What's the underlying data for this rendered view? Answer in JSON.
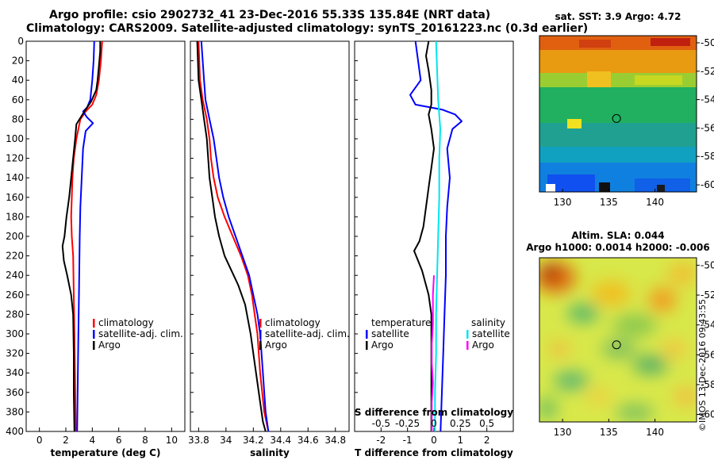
{
  "header": {
    "line1": "Argo profile: csio 2902732_41 23-Dec-2016 55.33S 135.84E (NRT data)",
    "line2": "Climatology: CARS2009. Satellite-adjusted climatology: synTS_20161223.nc (0.3d earlier)"
  },
  "colors": {
    "climatology": "#ff0000",
    "satellite_adj": "#0000ff",
    "argo": "#000000",
    "salinity_satellite": "#00e5ee",
    "salinity_argo": "#ff00ff"
  },
  "chart_data": [
    {
      "type": "line",
      "id": "temperature",
      "xlabel": "temperature (deg C)",
      "ylabel": "",
      "xlim": [
        -1,
        11
      ],
      "ylim": [
        400,
        0
      ],
      "xticks": [
        "0",
        "2",
        "4",
        "6",
        "8",
        "10"
      ],
      "yticks": [
        "0",
        "20",
        "40",
        "60",
        "80",
        "100",
        "120",
        "140",
        "160",
        "180",
        "200",
        "220",
        "240",
        "260",
        "280",
        "300",
        "320",
        "340",
        "360",
        "380",
        "400"
      ],
      "legend": [
        "climatology",
        "satellite-adj. clim.",
        "Argo"
      ],
      "series": [
        {
          "name": "climatology",
          "points": [
            [
              4.75,
              0
            ],
            [
              4.65,
              20
            ],
            [
              4.5,
              40
            ],
            [
              4.3,
              55
            ],
            [
              4,
              65
            ],
            [
              3.5,
              72
            ],
            [
              3.1,
              80
            ],
            [
              2.8,
              100
            ],
            [
              2.6,
              120
            ],
            [
              2.5,
              140
            ],
            [
              2.45,
              160
            ],
            [
              2.4,
              180
            ],
            [
              2.45,
              200
            ],
            [
              2.55,
              220
            ],
            [
              2.6,
              260
            ],
            [
              2.65,
              300
            ],
            [
              2.7,
              350
            ],
            [
              2.75,
              400
            ]
          ]
        },
        {
          "name": "satellite-adj. clim.",
          "points": [
            [
              4.15,
              0
            ],
            [
              4.1,
              20
            ],
            [
              4.0,
              40
            ],
            [
              3.85,
              60
            ],
            [
              3.6,
              68
            ],
            [
              3.3,
              72
            ],
            [
              3.6,
              78
            ],
            [
              4.05,
              84
            ],
            [
              3.5,
              92
            ],
            [
              3.3,
              110
            ],
            [
              3.2,
              140
            ],
            [
              3.1,
              170
            ],
            [
              3.05,
              200
            ],
            [
              3.0,
              250
            ],
            [
              2.95,
              300
            ],
            [
              2.9,
              350
            ],
            [
              2.85,
              400
            ]
          ]
        },
        {
          "name": "Argo",
          "points": [
            [
              4.6,
              0
            ],
            [
              4.6,
              10
            ],
            [
              4.5,
              25
            ],
            [
              4.4,
              40
            ],
            [
              4.3,
              50
            ],
            [
              3.9,
              62
            ],
            [
              3.4,
              72
            ],
            [
              2.8,
              85
            ],
            [
              2.7,
              100
            ],
            [
              2.55,
              120
            ],
            [
              2.4,
              140
            ],
            [
              2.25,
              160
            ],
            [
              2.05,
              180
            ],
            [
              1.9,
              200
            ],
            [
              1.75,
              210
            ],
            [
              1.85,
              225
            ],
            [
              2.1,
              240
            ],
            [
              2.4,
              260
            ],
            [
              2.55,
              280
            ],
            [
              2.6,
              320
            ],
            [
              2.6,
              360
            ],
            [
              2.65,
              400
            ]
          ]
        }
      ]
    },
    {
      "type": "line",
      "id": "salinity",
      "xlabel": "salinity",
      "xlim": [
        33.74,
        34.9
      ],
      "ylim": [
        400,
        0
      ],
      "xticks": [
        "33.8",
        "34",
        "34.2",
        "34.4",
        "34.6",
        "34.8"
      ],
      "legend": [
        "climatology",
        "satellite-adj. clim.",
        "Argo"
      ],
      "series": [
        {
          "name": "climatology",
          "points": [
            [
              33.8,
              0
            ],
            [
              33.81,
              40
            ],
            [
              33.83,
              60
            ],
            [
              33.86,
              80
            ],
            [
              33.88,
              100
            ],
            [
              33.89,
              120
            ],
            [
              33.91,
              140
            ],
            [
              33.94,
              160
            ],
            [
              33.99,
              180
            ],
            [
              34.05,
              200
            ],
            [
              34.11,
              220
            ],
            [
              34.16,
              240
            ],
            [
              34.19,
              260
            ],
            [
              34.21,
              280
            ],
            [
              34.23,
              300
            ],
            [
              34.25,
              340
            ],
            [
              34.28,
              380
            ],
            [
              34.31,
              400
            ]
          ]
        },
        {
          "name": "satellite-adj. clim.",
          "points": [
            [
              33.82,
              0
            ],
            [
              33.84,
              40
            ],
            [
              33.85,
              60
            ],
            [
              33.88,
              80
            ],
            [
              33.91,
              100
            ],
            [
              33.93,
              120
            ],
            [
              33.95,
              140
            ],
            [
              33.98,
              160
            ],
            [
              34.02,
              180
            ],
            [
              34.07,
              200
            ],
            [
              34.12,
              220
            ],
            [
              34.17,
              240
            ],
            [
              34.2,
              260
            ],
            [
              34.23,
              280
            ],
            [
              34.25,
              300
            ],
            [
              34.27,
              340
            ],
            [
              34.29,
              380
            ],
            [
              34.31,
              400
            ]
          ]
        },
        {
          "name": "Argo",
          "points": [
            [
              33.79,
              0
            ],
            [
              33.8,
              40
            ],
            [
              33.82,
              60
            ],
            [
              33.84,
              80
            ],
            [
              33.86,
              100
            ],
            [
              33.87,
              120
            ],
            [
              33.88,
              140
            ],
            [
              33.9,
              160
            ],
            [
              33.92,
              180
            ],
            [
              33.95,
              200
            ],
            [
              33.99,
              220
            ],
            [
              34.04,
              235
            ],
            [
              34.09,
              250
            ],
            [
              34.14,
              270
            ],
            [
              34.18,
              300
            ],
            [
              34.21,
              330
            ],
            [
              34.24,
              360
            ],
            [
              34.27,
              390
            ],
            [
              34.29,
              400
            ]
          ]
        }
      ]
    },
    {
      "type": "line",
      "id": "difference",
      "xlabel": "T difference from climatology",
      "xlim": [
        -3,
        3
      ],
      "ylim": [
        400,
        0
      ],
      "xticks": [
        "-2",
        "-1",
        "0",
        "1",
        "2"
      ],
      "top_label": "S difference from climatology",
      "top_ticks": [
        "-0.5",
        "-0.25",
        "0",
        "0.25",
        "0.5"
      ],
      "legend_temperature": {
        "title": "temperature",
        "items": [
          "satellite",
          "Argo"
        ]
      },
      "legend_salinity": {
        "title": "salinity",
        "items": [
          "satellite",
          "Argo"
        ]
      },
      "series": [
        {
          "name": "T satellite",
          "points": [
            [
              -0.7,
              0
            ],
            [
              -0.6,
              20
            ],
            [
              -0.5,
              40
            ],
            [
              -0.9,
              55
            ],
            [
              -0.7,
              65
            ],
            [
              0.3,
              70
            ],
            [
              0.8,
              75
            ],
            [
              1.05,
              82
            ],
            [
              0.7,
              90
            ],
            [
              0.5,
              110
            ],
            [
              0.6,
              140
            ],
            [
              0.5,
              170
            ],
            [
              0.45,
              200
            ],
            [
              0.45,
              240
            ],
            [
              0.4,
              280
            ],
            [
              0.35,
              320
            ],
            [
              0.3,
              360
            ],
            [
              0.25,
              400
            ]
          ]
        },
        {
          "name": "T Argo",
          "points": [
            [
              -0.2,
              0
            ],
            [
              -0.3,
              15
            ],
            [
              -0.2,
              30
            ],
            [
              -0.1,
              50
            ],
            [
              -0.1,
              65
            ],
            [
              -0.2,
              75
            ],
            [
              -0.1,
              90
            ],
            [
              0,
              110
            ],
            [
              -0.1,
              130
            ],
            [
              -0.2,
              150
            ],
            [
              -0.3,
              170
            ],
            [
              -0.4,
              190
            ],
            [
              -0.55,
              205
            ],
            [
              -0.75,
              215
            ],
            [
              -0.45,
              235
            ],
            [
              -0.2,
              260
            ],
            [
              -0.1,
              280
            ],
            [
              -0.1,
              320
            ],
            [
              -0.1,
              360
            ],
            [
              -0.1,
              400
            ]
          ]
        },
        {
          "name": "S satellite",
          "points": [
            [
              0.02,
              0
            ],
            [
              0.03,
              30
            ],
            [
              0.04,
              60
            ],
            [
              0.06,
              90
            ],
            [
              0.05,
              120
            ],
            [
              0.05,
              160
            ],
            [
              0.04,
              200
            ],
            [
              0.03,
              240
            ],
            [
              0.02,
              280
            ],
            [
              0.02,
              320
            ],
            [
              0.01,
              360
            ],
            [
              0.01,
              400
            ]
          ]
        },
        {
          "name": "S Argo",
          "points": [
            [
              0,
              240
            ],
            [
              -0.01,
              260
            ],
            [
              -0.01,
              290
            ],
            [
              -0.02,
              310
            ],
            [
              -0.02,
              330
            ],
            [
              -0.01,
              350
            ],
            [
              -0.02,
              370
            ],
            [
              -0.02,
              390
            ],
            [
              -0.02,
              400
            ]
          ]
        }
      ]
    },
    {
      "type": "heatmap",
      "id": "sst_map",
      "title": "sat. SST: 3.9 Argo: 4.72",
      "xlim": [
        127.5,
        144.5
      ],
      "ylim": [
        -60.5,
        -49.5
      ],
      "xticks": [
        "130",
        "135",
        "140"
      ],
      "yticks": [
        "-50",
        "-52",
        "-54",
        "-56",
        "-58",
        "-60"
      ],
      "marker": {
        "lon": 135.84,
        "lat": -55.33
      }
    },
    {
      "type": "heatmap",
      "id": "sla_map",
      "title1": "Altim. SLA: 0.044",
      "title2": "Argo h1000: 0.0014 h2000: -0.006",
      "xlim": [
        127.5,
        144.5
      ],
      "ylim": [
        -60.5,
        -49.5
      ],
      "xticks": [
        "130",
        "135",
        "140"
      ],
      "yticks": [
        "-50",
        "-52",
        "-54",
        "-56",
        "-58",
        "-60"
      ],
      "marker": {
        "lon": 135.84,
        "lat": -55.33
      },
      "credit": "©IMOS 13-Dec-2016 09:43:55"
    }
  ]
}
